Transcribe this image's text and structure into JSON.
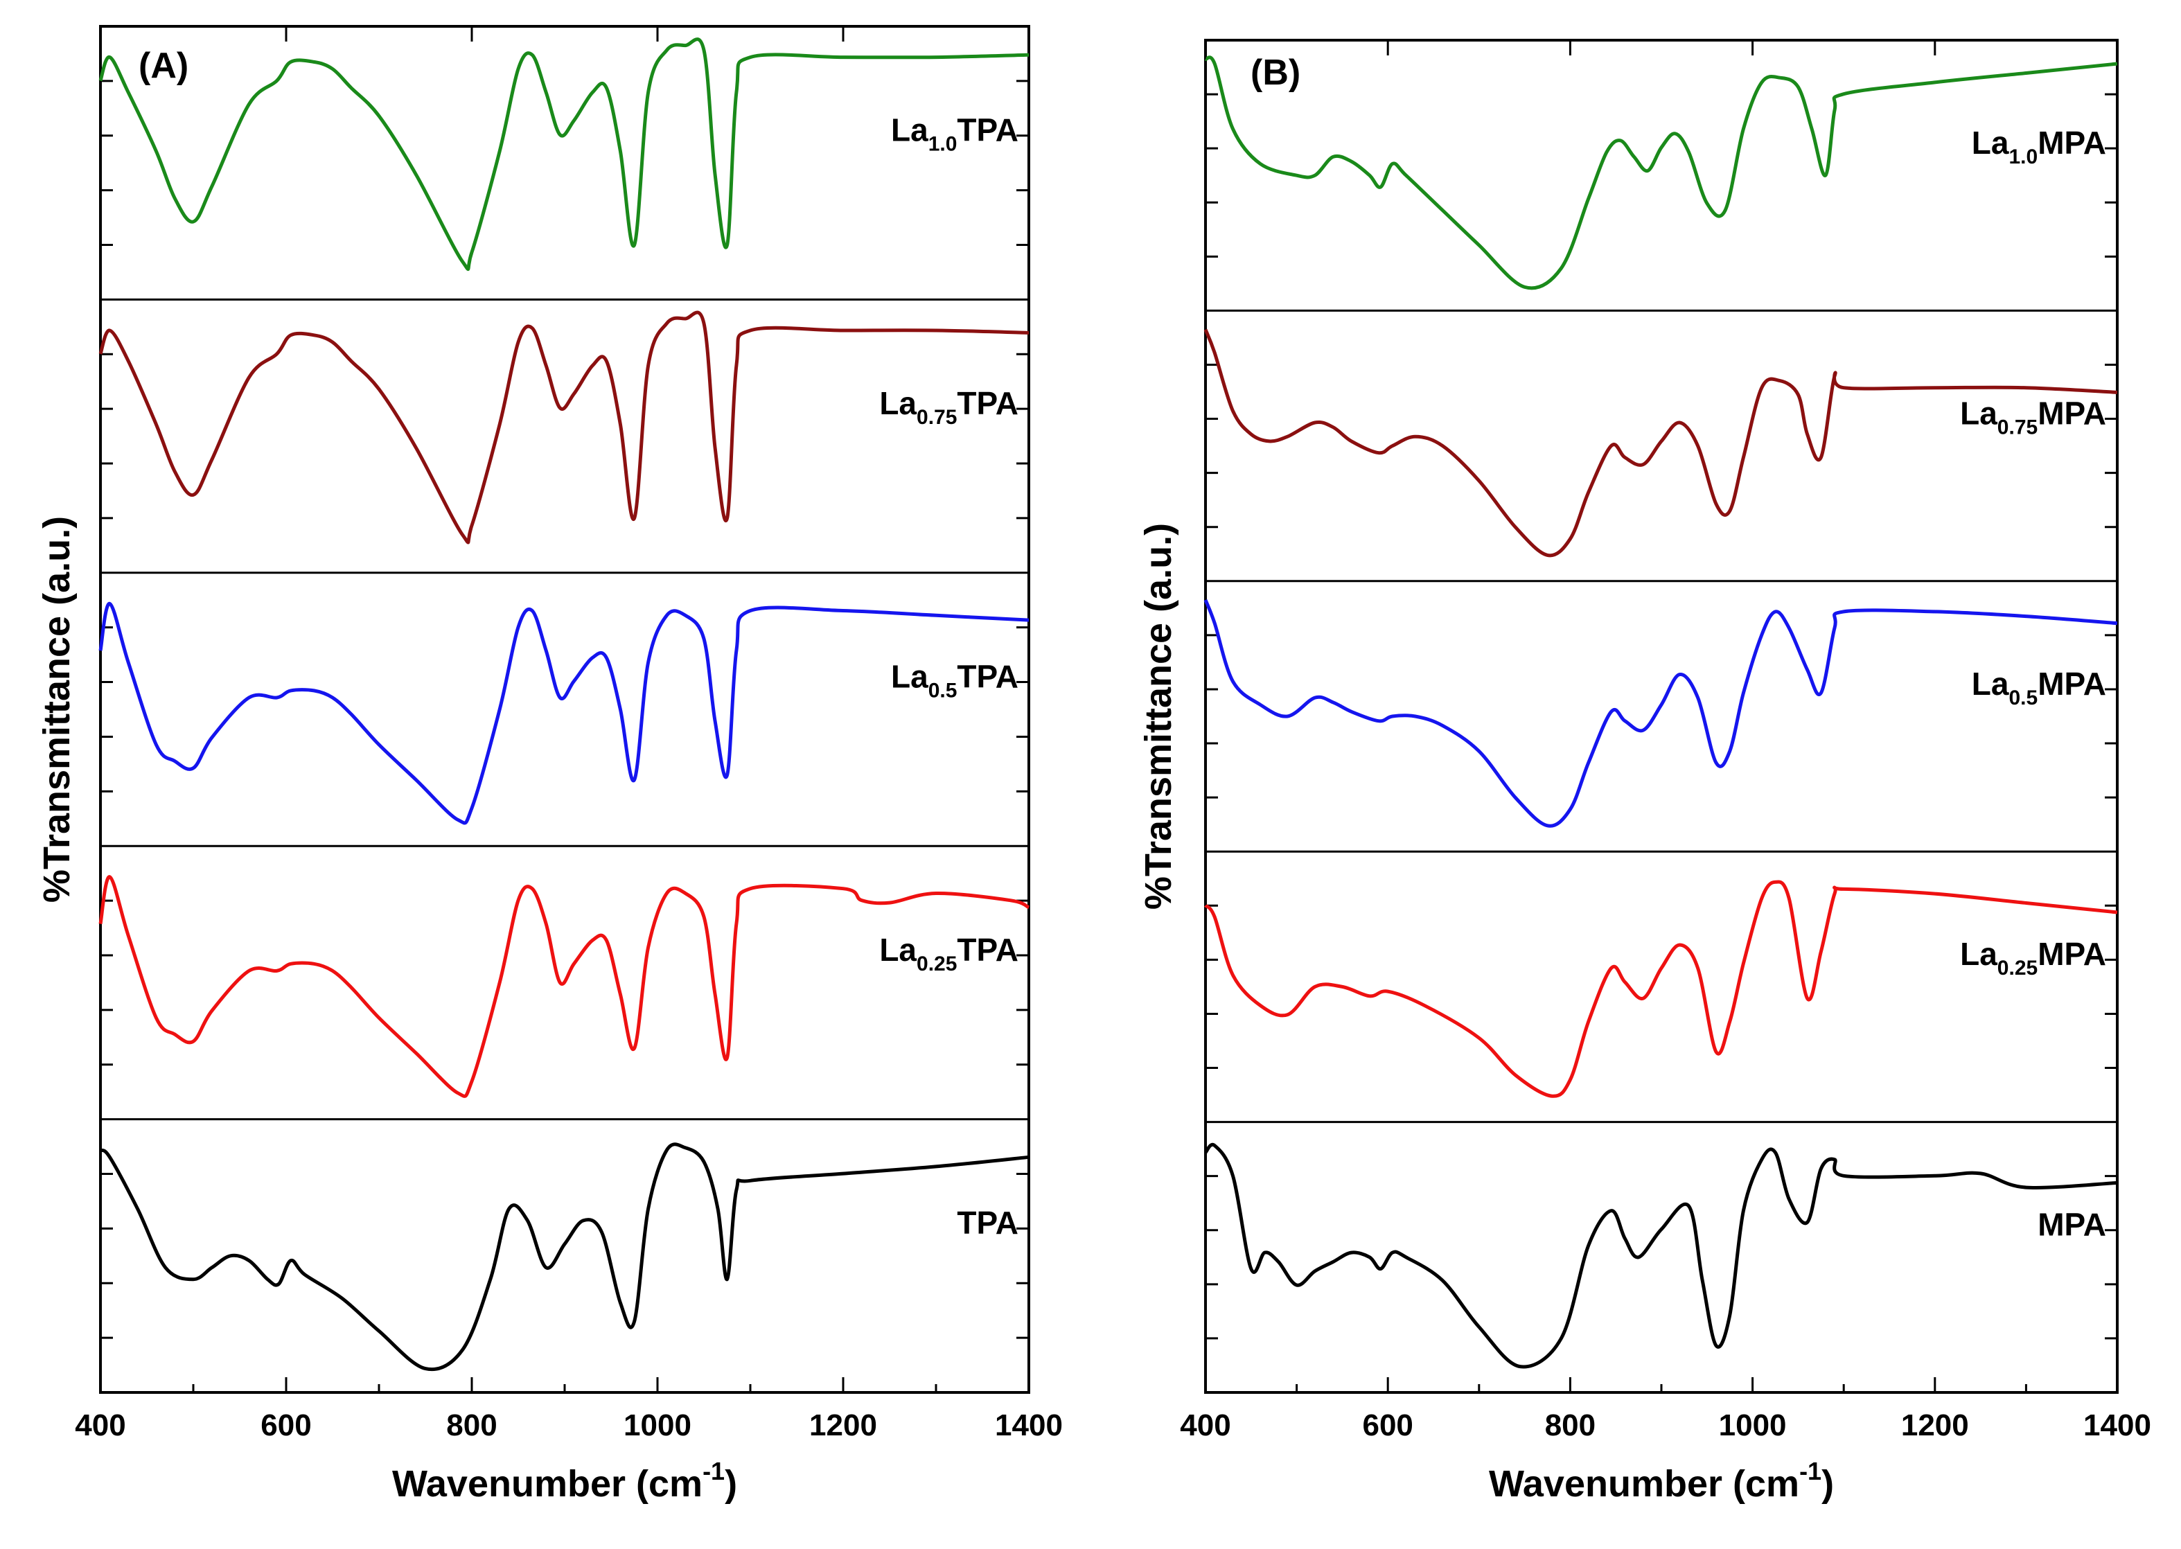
{
  "chart_data": [
    {
      "type": "line",
      "panel_label": "(A)",
      "xlabel_main": "Wavenumber (cm",
      "xlabel_sup": "-1",
      "xlabel_close": ")",
      "ylabel": "%Transmittance (a.u.)",
      "xlim": [
        400,
        1400
      ],
      "xticks": [
        "400",
        "600",
        "800",
        "1000",
        "1200",
        "1400"
      ],
      "colors": {
        "La1.0": "#1a8a1a",
        "La0.75": "#8b1010",
        "La0.5": "#1515ee",
        "La0.25": "#ee1111",
        "base": "#000000"
      },
      "series": [
        {
          "name": "La1.0TPA",
          "label_main": "La",
          "label_sub": "1.0",
          "label_tail": "TPA",
          "color": "#1a8a1a",
          "x": [
            400,
            410,
            430,
            460,
            480,
            500,
            520,
            560,
            590,
            605,
            630,
            650,
            670,
            700,
            740,
            790,
            800,
            830,
            850,
            865,
            880,
            895,
            910,
            930,
            945,
            960,
            975,
            990,
            1010,
            1030,
            1050,
            1062,
            1075,
            1085,
            1100,
            1200,
            1300,
            1400
          ],
          "y": [
            85,
            95,
            80,
            55,
            35,
            25,
            40,
            75,
            85,
            93,
            93,
            90,
            82,
            70,
            45,
            8,
            12,
            55,
            90,
            96,
            80,
            62,
            68,
            80,
            82,
            55,
            15,
            80,
            98,
            100,
            98,
            45,
            15,
            80,
            95,
            95,
            95,
            96
          ]
        },
        {
          "name": "La0.75TPA",
          "label_main": "La",
          "label_sub": "0.75",
          "label_tail": "TPA",
          "color": "#8b1010",
          "x": [
            400,
            410,
            430,
            460,
            480,
            500,
            520,
            560,
            590,
            605,
            630,
            650,
            670,
            700,
            740,
            790,
            800,
            830,
            850,
            865,
            880,
            895,
            910,
            930,
            945,
            960,
            975,
            990,
            1010,
            1030,
            1050,
            1062,
            1075,
            1085,
            1100,
            1200,
            1300,
            1400
          ],
          "y": [
            85,
            95,
            82,
            55,
            35,
            25,
            40,
            75,
            85,
            93,
            93,
            90,
            82,
            70,
            45,
            8,
            12,
            55,
            90,
            96,
            80,
            62,
            68,
            80,
            82,
            55,
            15,
            80,
            98,
            100,
            98,
            45,
            15,
            80,
            95,
            95,
            95,
            94
          ]
        },
        {
          "name": "La0.5TPA",
          "label_main": "La",
          "label_sub": "0.5",
          "label_tail": "TPA",
          "color": "#1515ee",
          "x": [
            400,
            410,
            430,
            460,
            480,
            500,
            520,
            560,
            590,
            605,
            630,
            650,
            670,
            700,
            740,
            785,
            800,
            830,
            850,
            865,
            880,
            895,
            910,
            930,
            945,
            960,
            975,
            990,
            1010,
            1030,
            1050,
            1062,
            1075,
            1085,
            1100,
            1200,
            1300,
            1400
          ],
          "y": [
            75,
            95,
            70,
            35,
            28,
            25,
            38,
            55,
            55,
            58,
            58,
            55,
            48,
            35,
            20,
            3,
            8,
            50,
            85,
            92,
            75,
            55,
            62,
            72,
            72,
            50,
            20,
            70,
            90,
            90,
            80,
            45,
            22,
            75,
            92,
            92,
            90,
            88
          ]
        },
        {
          "name": "La0.25TPA",
          "label_main": "La",
          "label_sub": "0.25",
          "label_tail": "TPA",
          "color": "#ee1111",
          "x": [
            400,
            410,
            430,
            460,
            480,
            500,
            520,
            560,
            590,
            605,
            630,
            650,
            670,
            700,
            740,
            785,
            800,
            830,
            850,
            865,
            880,
            895,
            910,
            930,
            945,
            960,
            975,
            990,
            1010,
            1030,
            1050,
            1062,
            1075,
            1085,
            1100,
            1200,
            1220,
            1250,
            1300,
            1380,
            1400
          ],
          "y": [
            75,
            95,
            70,
            35,
            28,
            25,
            38,
            55,
            55,
            58,
            58,
            55,
            48,
            35,
            20,
            3,
            8,
            50,
            85,
            90,
            75,
            50,
            58,
            68,
            68,
            45,
            22,
            65,
            88,
            88,
            78,
            45,
            18,
            75,
            90,
            90,
            85,
            84,
            88,
            85,
            82
          ]
        },
        {
          "name": "TPA",
          "label_main": "TPA",
          "label_sub": "",
          "label_tail": "",
          "color": "#000000",
          "x": [
            400,
            410,
            440,
            470,
            500,
            520,
            540,
            560,
            580,
            592,
            605,
            620,
            660,
            700,
            750,
            790,
            820,
            840,
            860,
            880,
            900,
            920,
            940,
            960,
            975,
            990,
            1010,
            1030,
            1050,
            1065,
            1075,
            1085,
            1100,
            1200,
            1300,
            1400
          ],
          "y": [
            95,
            92,
            70,
            45,
            40,
            45,
            50,
            48,
            40,
            38,
            48,
            42,
            32,
            18,
            2,
            10,
            40,
            70,
            65,
            45,
            55,
            65,
            60,
            30,
            22,
            70,
            95,
            96,
            90,
            70,
            40,
            78,
            82,
            85,
            88,
            92
          ]
        }
      ]
    },
    {
      "type": "line",
      "panel_label": "(B)",
      "xlabel_main": "Wavenumber (cm",
      "xlabel_sup": "-1",
      "xlabel_close": ")",
      "ylabel": "%Transmittance (a.u.)",
      "xlim": [
        400,
        1400
      ],
      "xticks": [
        "400",
        "600",
        "800",
        "1000",
        "1200",
        "1400"
      ],
      "series": [
        {
          "name": "La1.0MPA",
          "label_main": "La",
          "label_sub": "1.0",
          "label_tail": "MPA",
          "color": "#1a8a1a",
          "x": [
            400,
            410,
            430,
            460,
            500,
            520,
            540,
            560,
            580,
            592,
            605,
            620,
            660,
            700,
            750,
            790,
            820,
            840,
            855,
            870,
            885,
            900,
            915,
            930,
            950,
            970,
            990,
            1010,
            1030,
            1050,
            1065,
            1080,
            1090,
            1100,
            1200,
            1300,
            1400
          ],
          "y": [
            100,
            98,
            70,
            55,
            50,
            50,
            58,
            56,
            50,
            45,
            55,
            50,
            35,
            20,
            2,
            10,
            40,
            60,
            65,
            58,
            52,
            62,
            68,
            60,
            38,
            35,
            70,
            90,
            92,
            88,
            70,
            50,
            78,
            85,
            90,
            94,
            98
          ]
        },
        {
          "name": "La0.75MPA",
          "label_main": "La",
          "label_sub": "0.75",
          "label_tail": "MPA",
          "color": "#8b1010",
          "x": [
            400,
            410,
            430,
            450,
            470,
            490,
            520,
            540,
            560,
            590,
            605,
            630,
            660,
            700,
            740,
            775,
            800,
            820,
            845,
            860,
            880,
            900,
            920,
            940,
            960,
            975,
            990,
            1010,
            1030,
            1050,
            1060,
            1075,
            1090,
            1100,
            1200,
            1300,
            1400
          ],
          "y": [
            100,
            90,
            65,
            55,
            52,
            54,
            60,
            58,
            52,
            47,
            50,
            54,
            50,
            35,
            15,
            3,
            10,
            30,
            50,
            45,
            42,
            52,
            60,
            50,
            25,
            22,
            45,
            75,
            78,
            72,
            55,
            45,
            80,
            75,
            75,
            75,
            73
          ]
        },
        {
          "name": "La0.5MPA",
          "label_main": "La",
          "label_sub": "0.5",
          "label_tail": "MPA",
          "color": "#1515ee",
          "x": [
            400,
            410,
            430,
            460,
            490,
            520,
            540,
            560,
            590,
            605,
            630,
            660,
            700,
            740,
            775,
            800,
            820,
            845,
            860,
            880,
            900,
            920,
            940,
            960,
            975,
            990,
            1010,
            1025,
            1040,
            1060,
            1075,
            1090,
            1100,
            1200,
            1300,
            1400
          ],
          "y": [
            100,
            90,
            65,
            55,
            50,
            58,
            56,
            52,
            48,
            50,
            50,
            46,
            35,
            15,
            3,
            10,
            30,
            52,
            48,
            44,
            55,
            68,
            58,
            30,
            35,
            60,
            85,
            95,
            88,
            70,
            60,
            88,
            95,
            95,
            93,
            90
          ]
        },
        {
          "name": "La0.25MPA",
          "label_main": "La",
          "label_sub": "0.25",
          "label_tail": "MPA",
          "color": "#ee1111",
          "x": [
            400,
            410,
            430,
            460,
            490,
            520,
            550,
            580,
            600,
            640,
            700,
            740,
            780,
            800,
            820,
            845,
            860,
            880,
            900,
            920,
            940,
            960,
            975,
            990,
            1010,
            1025,
            1040,
            1060,
            1075,
            1090,
            1100,
            1200,
            1300,
            1400
          ],
          "y": [
            85,
            80,
            55,
            42,
            38,
            50,
            50,
            46,
            48,
            42,
            28,
            12,
            3,
            10,
            35,
            58,
            52,
            45,
            58,
            68,
            58,
            22,
            35,
            60,
            88,
            95,
            88,
            45,
            65,
            90,
            92,
            90,
            86,
            82
          ]
        },
        {
          "name": "MPA",
          "label_main": "MPA",
          "label_sub": "",
          "label_tail": "",
          "color": "#000000",
          "x": [
            400,
            410,
            430,
            450,
            465,
            480,
            500,
            520,
            540,
            560,
            580,
            592,
            605,
            620,
            660,
            700,
            745,
            790,
            820,
            845,
            860,
            875,
            900,
            930,
            945,
            960,
            975,
            990,
            1010,
            1025,
            1040,
            1060,
            1075,
            1090,
            1100,
            1200,
            1250,
            1300,
            1400
          ],
          "y": [
            95,
            98,
            85,
            45,
            52,
            48,
            38,
            44,
            48,
            52,
            50,
            45,
            52,
            50,
            40,
            20,
            3,
            15,
            55,
            70,
            58,
            50,
            62,
            72,
            40,
            12,
            25,
            70,
            92,
            95,
            75,
            65,
            88,
            92,
            85,
            85,
            86,
            80,
            82
          ]
        }
      ]
    }
  ]
}
